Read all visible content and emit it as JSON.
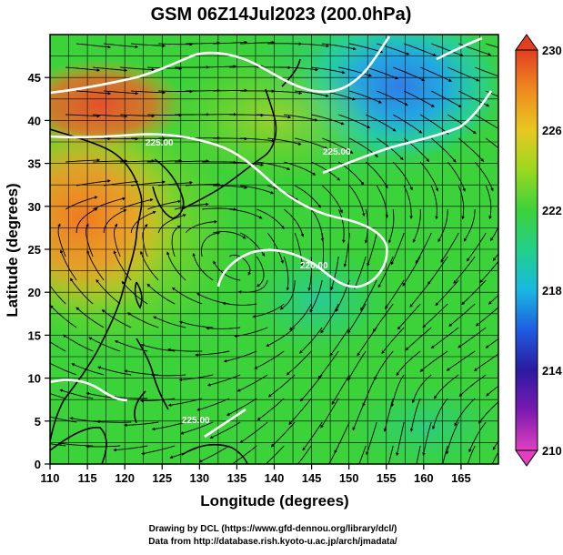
{
  "title": "GSM 06Z14Jul2023 (200.0hPa)",
  "x_axis": {
    "label": "Longitude (degrees)",
    "min": 110,
    "max": 170,
    "ticks": [
      "110",
      "115",
      "120",
      "125",
      "130",
      "135",
      "140",
      "145",
      "150",
      "155",
      "160",
      "165"
    ]
  },
  "y_axis": {
    "label": "Latitude (degrees)",
    "min": 0,
    "max": 50,
    "ticks": [
      "0",
      "5",
      "10",
      "15",
      "20",
      "25",
      "30",
      "35",
      "40",
      "45"
    ]
  },
  "colorbar": {
    "min": 210,
    "max": 230,
    "labels": [
      "210",
      "214",
      "218",
      "222",
      "226",
      "230"
    ],
    "colors": [
      "#e040c0",
      "#2a1aa0",
      "#1f5ce0",
      "#18b8e0",
      "#22d08a",
      "#3cd23a",
      "#9ad820",
      "#e8c820",
      "#f08a20",
      "#e04020"
    ]
  },
  "contour_labels": [
    "225.00",
    "225.00",
    "220.00",
    "225.00"
  ],
  "credits": {
    "line1": "Drawing by DCL (https://www.gfd-dennou.org/library/dcl/)",
    "line2": "Data from http://database.rish.kyoto-u.ac.jp/arch/jmadata/"
  },
  "icons": {
    "colorbar_top": "triangle-up-icon",
    "colorbar_bottom": "triangle-down-icon"
  }
}
